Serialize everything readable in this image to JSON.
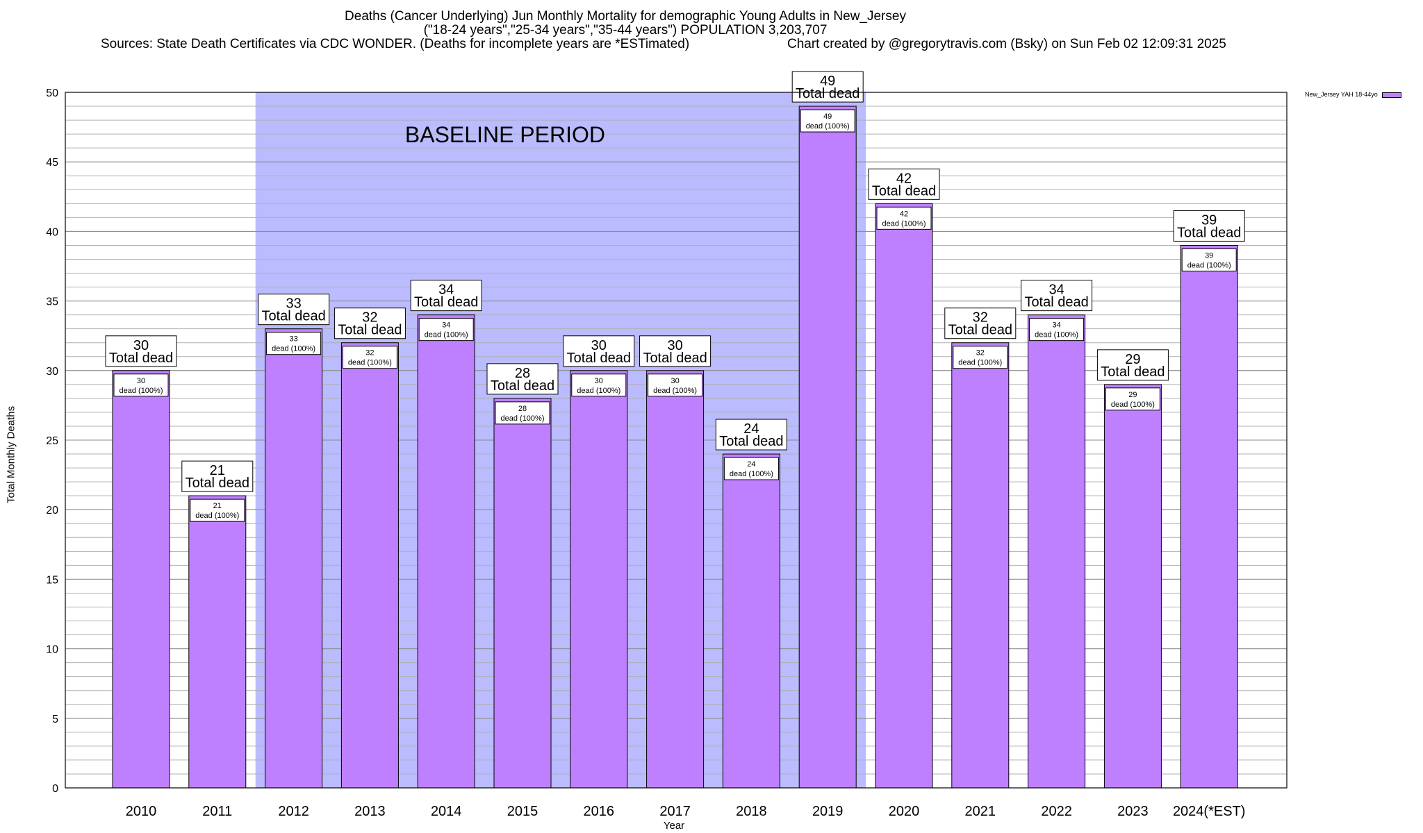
{
  "chart_data": {
    "type": "bar",
    "title": "Deaths (Cancer Underlying) Jun Monthly Mortality for demographic Young Adults in New_Jersey",
    "subtitle": "(\"18-24 years\",\"25-34 years\",\"35-44 years\") POPULATION 3,203,707",
    "sources": "Sources: State Death Certificates via CDC WONDER. (Deaths for incomplete years are *ESTimated)",
    "credit": "Chart created by @gregorytravis.com (Bsky) on Sun Feb 02 12:09:31 2025",
    "xlabel": "Year",
    "ylabel": "Total Monthly Deaths",
    "ylim": [
      0,
      50
    ],
    "yticks": [
      0,
      5,
      10,
      15,
      20,
      25,
      30,
      35,
      40,
      45,
      50
    ],
    "categories": [
      "2010",
      "2011",
      "2012",
      "2013",
      "2014",
      "2015",
      "2016",
      "2017",
      "2018",
      "2019",
      "2020",
      "2021",
      "2022",
      "2023",
      "2024(*EST)"
    ],
    "series": [
      {
        "name": "New_Jersey YAH 18-44yo",
        "values": [
          30,
          21,
          33,
          32,
          34,
          28,
          30,
          30,
          24,
          49,
          42,
          32,
          34,
          29,
          39
        ],
        "color": "#bf80ff"
      }
    ],
    "bar_label_suffix": "Total dead",
    "inner_label_suffix": "dead (100%)",
    "baseline": {
      "label": "BASELINE PERIOD",
      "from": "2012",
      "to": "2019",
      "color": "#bbbbff"
    },
    "grid": true,
    "legend_position": "top-right"
  }
}
